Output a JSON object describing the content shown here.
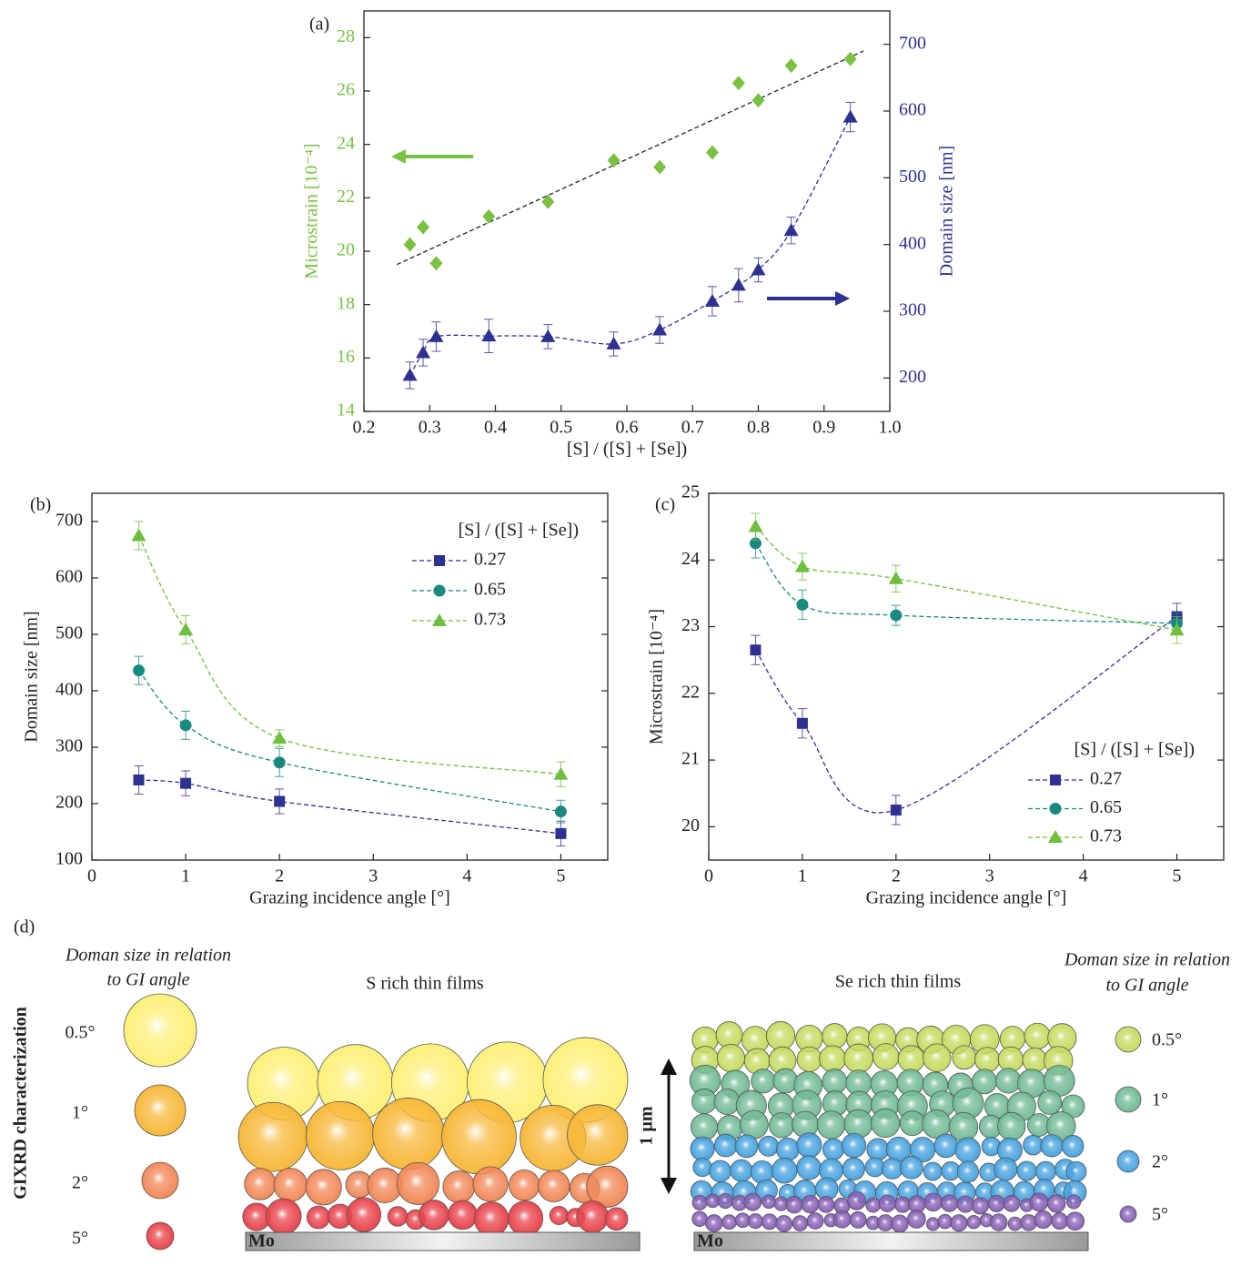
{
  "chart_data": [
    {
      "type": "scatter",
      "label": "(a)",
      "x_label": "[S] / ([S] + [Se])",
      "y_label": "Microstrain [10⁻⁴]",
      "y2_label": "Domain size [nm]",
      "x": [
        0.27,
        0.29,
        0.31,
        0.39,
        0.48,
        0.58,
        0.65,
        0.73,
        0.77,
        0.8,
        0.85,
        0.94
      ],
      "xlim": [
        0.2,
        1.0
      ],
      "xticks": [
        0.2,
        0.3,
        0.4,
        0.5,
        0.6,
        0.7,
        0.8,
        0.9,
        {
          "value": 1,
          "label": "1.0"
        }
      ],
      "ylim": [
        14,
        29
      ],
      "yticks": [
        14,
        16,
        18,
        20,
        22,
        24,
        26,
        28
      ],
      "y2lim": [
        150,
        750
      ],
      "y2ticks": [
        200,
        300,
        400,
        500,
        600,
        700
      ],
      "series": [
        {
          "color": "#7ac143",
          "marker": "diamond",
          "values": [
            20.25,
            20.9,
            19.55,
            21.3,
            21.85,
            23.4,
            23.15,
            23.7,
            26.3,
            25.65,
            26.95,
            27.2
          ]
        },
        {
          "color": "#2e3192",
          "marker": "triangle",
          "axis": "y2",
          "dashed": true,
          "values": [
            204,
            238,
            262,
            263,
            262,
            251,
            272,
            315,
            339,
            362,
            421,
            591
          ],
          "errors": [
            20,
            20,
            22,
            25,
            18,
            18,
            20,
            22,
            25,
            18,
            20,
            22
          ]
        }
      ],
      "fit": {
        "x": [
          0.25,
          0.96
        ],
        "values": [
          19.5,
          27.5
        ]
      }
    },
    {
      "type": "line",
      "label": "(b)",
      "x_label": "Grazing incidence angle [°]",
      "y_label": "Domain size [nm]",
      "x": [
        0.5,
        1,
        2,
        5
      ],
      "xlim": [
        0,
        5.5
      ],
      "xticks": [
        0,
        1,
        2,
        3,
        4,
        5
      ],
      "ylim": [
        100,
        750
      ],
      "yticks": [
        100,
        200,
        300,
        400,
        500,
        600,
        700
      ],
      "legend_title": "[S] / ([S] + [Se])",
      "legend": "upper right",
      "series": [
        {
          "name": "0.27",
          "color": "#2e3192",
          "marker": "square",
          "dashed": true,
          "values": [
            242,
            236,
            204,
            147
          ],
          "errors": [
            25,
            22,
            22,
            22
          ]
        },
        {
          "name": "0.65",
          "color": "#1a8a80",
          "marker": "circle",
          "dashed": true,
          "values": [
            436,
            339,
            273,
            186
          ],
          "errors": [
            25,
            25,
            25,
            20
          ]
        },
        {
          "name": "0.73",
          "color": "#6fbf3f",
          "marker": "triangle",
          "dashed": true,
          "values": [
            675,
            508,
            316,
            252
          ],
          "errors": [
            25,
            25,
            15,
            22
          ]
        }
      ]
    },
    {
      "type": "line",
      "label": "(c)",
      "x_label": "Grazing incidence angle [°]",
      "y_label": "Microstrain [10⁻⁴]",
      "x": [
        0.5,
        1,
        2,
        5
      ],
      "xlim": [
        0,
        5.5
      ],
      "xticks": [
        0,
        1,
        2,
        3,
        4,
        5
      ],
      "ylim": [
        19.5,
        25
      ],
      "yticks": [
        20,
        21,
        22,
        23,
        24,
        25
      ],
      "legend_title": "[S] / ([S] + [Se])",
      "legend": "lower right",
      "series": [
        {
          "name": "0.27",
          "color": "#2e3192",
          "marker": "square",
          "dashed": true,
          "values": [
            22.65,
            21.55,
            20.25,
            23.15
          ],
          "errors": [
            0.22,
            0.22,
            0.22,
            0.2
          ]
        },
        {
          "name": "0.65",
          "color": "#1a8a80",
          "marker": "circle",
          "dashed": true,
          "values": [
            24.25,
            23.33,
            23.17,
            23.05
          ],
          "errors": [
            0.22,
            0.22,
            0.15,
            0.15
          ]
        },
        {
          "name": "0.73",
          "color": "#6fbf3f",
          "marker": "triangle",
          "dashed": true,
          "values": [
            24.5,
            23.9,
            23.72,
            22.95
          ],
          "errors": [
            0.2,
            0.2,
            0.2,
            0.2
          ]
        }
      ]
    }
  ],
  "diagram": {
    "label": "(d)",
    "side_title": "GIXRD characterization",
    "legend_title": [
      "Doman size in relation",
      "to GI angle"
    ],
    "angles": [
      "0.5°",
      "1°",
      "2°",
      "5°"
    ],
    "panels": [
      {
        "title": "S rich thin films",
        "substrate": "Mo"
      },
      {
        "title": "Se rich thin films",
        "substrate": "Mo"
      }
    ],
    "scale": "1 µm"
  }
}
